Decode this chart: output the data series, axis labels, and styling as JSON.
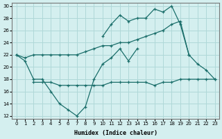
{
  "xlabel": "Humidex (Indice chaleur)",
  "background_color": "#d4efef",
  "grid_color": "#afd8d8",
  "line_color": "#1a6e6a",
  "xlim": [
    -0.5,
    23.5
  ],
  "ylim": [
    11.5,
    30.5
  ],
  "xticks": [
    0,
    1,
    2,
    3,
    4,
    5,
    6,
    7,
    8,
    9,
    10,
    11,
    12,
    13,
    14,
    15,
    16,
    17,
    18,
    19,
    20,
    21,
    22,
    23
  ],
  "yticks": [
    12,
    14,
    16,
    18,
    20,
    22,
    24,
    26,
    28,
    30
  ],
  "line1_x": [
    10,
    11,
    12,
    13,
    14,
    15,
    16,
    17,
    18,
    19,
    20,
    21,
    22,
    23
  ],
  "line1_y": [
    25,
    27,
    28.5,
    27.5,
    28,
    28,
    29.5,
    29,
    30,
    27,
    22,
    20.5,
    19.5,
    18
  ],
  "line2_x": [
    0,
    1,
    2,
    3,
    4,
    5,
    6,
    7,
    8,
    9,
    10,
    11,
    12,
    13,
    14,
    15,
    16,
    17,
    18,
    19,
    20
  ],
  "line2_y": [
    22,
    21.5,
    22,
    22,
    22,
    22,
    22,
    22,
    22.5,
    23,
    23.5,
    23.5,
    24,
    24,
    24.5,
    25,
    25.5,
    26,
    27,
    27.5,
    22
  ],
  "line3_x": [
    0,
    1,
    2,
    3,
    4,
    5,
    6,
    7,
    8,
    9,
    10,
    11,
    12,
    13,
    14,
    15,
    16,
    17,
    18,
    19,
    20,
    21,
    22,
    23
  ],
  "line3_y": [
    22,
    21,
    18,
    18,
    16,
    14,
    13,
    12,
    13.5,
    18,
    20.5,
    21.5,
    23,
    21,
    23,
    null,
    null,
    null,
    null,
    null,
    null,
    null,
    null,
    null
  ],
  "line4_x": [
    2,
    3,
    4,
    5,
    6,
    7,
    8,
    9,
    10,
    11,
    12,
    13,
    14,
    15,
    16,
    17,
    18,
    19,
    20,
    21,
    22,
    23
  ],
  "line4_y": [
    17.5,
    17.5,
    17.5,
    17,
    17,
    17,
    17,
    17,
    17,
    17.5,
    17.5,
    17.5,
    17.5,
    17.5,
    17,
    17.5,
    17.5,
    18,
    18,
    18,
    18,
    18
  ]
}
